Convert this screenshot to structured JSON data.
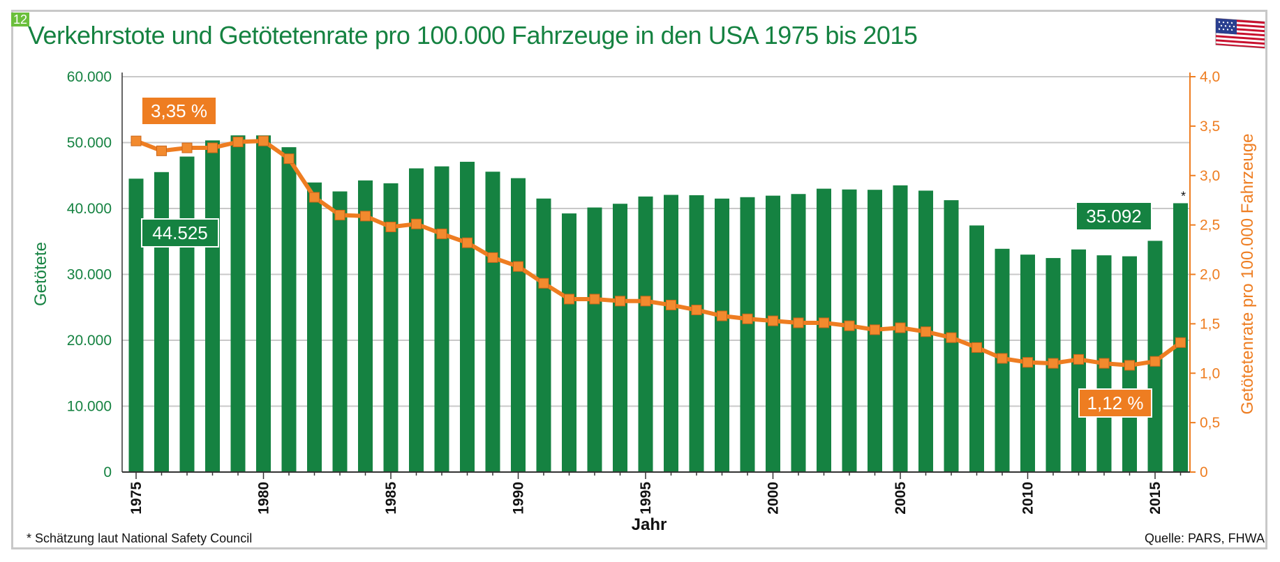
{
  "page_number": "12",
  "title": "Verkehrstote und Getötetenrate pro 100.000 Fahrzeuge in den USA 1975 bis 2015",
  "footnote": "* Schätzung laut National Safety Council",
  "source": "Quelle: PARS, FHWA",
  "icons": {
    "flag": "us-flag-icon"
  },
  "colors": {
    "bars": "#158241",
    "line": "#ee7d21",
    "grid": "#c8c8c8",
    "title": "#158241"
  },
  "chart_data": {
    "type": "bar",
    "title": "Verkehrstote und Getötetenrate pro 100.000 Fahrzeuge in den USA 1975 bis 2015",
    "xlabel": "Jahr",
    "ylabel": "Getötete",
    "y2label": "Getötetenrate pro 100.000 Fahrzeuge",
    "ylim": [
      0,
      60000
    ],
    "y2lim": [
      0,
      4.0
    ],
    "grid": true,
    "yticks": [
      "0",
      "10.000",
      "20.000",
      "30.000",
      "40.000",
      "50.000",
      "60.000"
    ],
    "y2ticks": [
      "0",
      "0,5",
      "1,0",
      "1,5",
      "2,0",
      "2,5",
      "3,0",
      "3,5",
      "4,0"
    ],
    "xticks": [
      "1975",
      "1980",
      "1985",
      "1990",
      "1995",
      "2000",
      "2005",
      "2010",
      "2015"
    ],
    "categories": [
      1975,
      1976,
      1977,
      1978,
      1979,
      1980,
      1981,
      1982,
      1983,
      1984,
      1985,
      1986,
      1987,
      1988,
      1989,
      1990,
      1991,
      1992,
      1993,
      1994,
      1995,
      1996,
      1997,
      1998,
      1999,
      2000,
      2001,
      2002,
      2003,
      2004,
      2005,
      2006,
      2007,
      2008,
      2009,
      2010,
      2011,
      2012,
      2013,
      2014,
      2015,
      2016
    ],
    "series": [
      {
        "type": "bar",
        "axis": "left",
        "values": [
          44525,
          45523,
          47878,
          50331,
          51093,
          51091,
          49301,
          43945,
          42589,
          44257,
          43825,
          46087,
          46390,
          47087,
          45582,
          44599,
          41508,
          39250,
          40150,
          40716,
          41817,
          42065,
          42013,
          41501,
          41717,
          41945,
          42196,
          43005,
          42884,
          42836,
          43510,
          42708,
          41259,
          37423,
          33883,
          32999,
          32479,
          33782,
          32893,
          32744,
          35092,
          40800
        ]
      },
      {
        "type": "line",
        "axis": "right",
        "values": [
          3.35,
          3.25,
          3.28,
          3.28,
          3.34,
          3.35,
          3.17,
          2.78,
          2.6,
          2.59,
          2.48,
          2.51,
          2.41,
          2.32,
          2.17,
          2.08,
          1.91,
          1.75,
          1.75,
          1.73,
          1.73,
          1.69,
          1.64,
          1.58,
          1.55,
          1.53,
          1.51,
          1.51,
          1.48,
          1.44,
          1.46,
          1.42,
          1.36,
          1.26,
          1.15,
          1.11,
          1.1,
          1.14,
          1.1,
          1.08,
          1.12,
          1.31
        ]
      }
    ],
    "star_mark": {
      "category": 2016,
      "label": "*"
    },
    "annotations": [
      {
        "text": "3,35 %",
        "series": "line",
        "category": 1975
      },
      {
        "text": "44.525",
        "series": "bar",
        "category": 1975
      },
      {
        "text": "35.092",
        "series": "bar",
        "category": 2015
      },
      {
        "text": "1,12 %",
        "series": "line",
        "category": 2015
      }
    ]
  }
}
